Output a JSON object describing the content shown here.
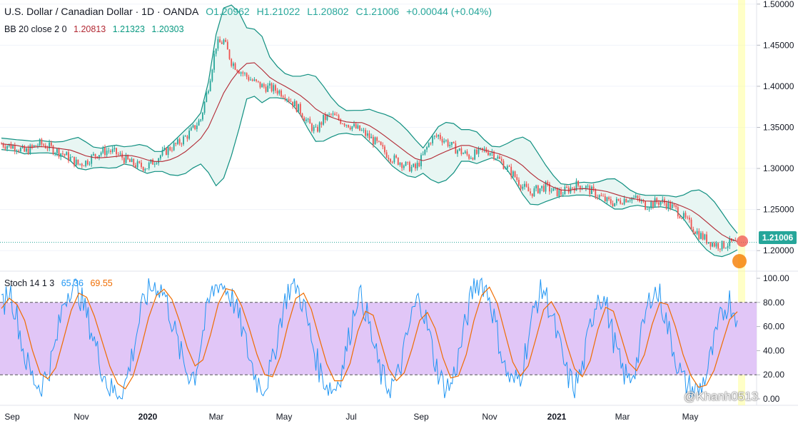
{
  "header": {
    "symbol": "U.S. Dollar / Canadian Dollar · 1D · OANDA",
    "open": "O1.20962",
    "high": "H1.21022",
    "low": "L1.20802",
    "close": "C1.21006",
    "change": "+0.00044 (+0.04%)"
  },
  "bb_legend": {
    "label": "BB 20 close 2 0",
    "basis": "1.20813",
    "upper": "1.21323",
    "lower": "1.20303"
  },
  "stoch_legend": {
    "label": "Stoch 14 1 3",
    "k": "65.36",
    "d": "69.55"
  },
  "last_price_badge": "1.21006",
  "watermark": "@Khanh0513",
  "colors": {
    "up": "#26a69a",
    "down": "#ef5350",
    "basis": "#b22833",
    "band": "#0f8f80",
    "band_fill": "#e8f6f3",
    "k": "#2196f3",
    "d": "#ef6c00",
    "stoch_fill": "#e1c6f7",
    "highlight": "#ffff99"
  },
  "chart_data": [
    {
      "type": "line",
      "title": "U.S. Dollar / Canadian Dollar · 1D · OANDA",
      "ylim": [
        1.175,
        1.505
      ],
      "y_ticks": [
        "1.50000",
        "1.45000",
        "1.40000",
        "1.35000",
        "1.30000",
        "1.25000",
        "1.20000"
      ],
      "x_ticks": [
        "Sep",
        "Nov",
        "2020",
        "Mar",
        "May",
        "Jul",
        "Sep",
        "Nov",
        "2021",
        "Mar",
        "May"
      ],
      "series": [
        {
          "name": "Price (approx. close)",
          "values": [
            1.33,
            1.328,
            1.326,
            1.32,
            1.325,
            1.33,
            1.327,
            1.322,
            1.318,
            1.312,
            1.305,
            1.308,
            1.315,
            1.32,
            1.322,
            1.318,
            1.312,
            1.306,
            1.303,
            1.302,
            1.31,
            1.318,
            1.325,
            1.33,
            1.338,
            1.348,
            1.36,
            1.4,
            1.45,
            1.455,
            1.43,
            1.42,
            1.412,
            1.405,
            1.4,
            1.398,
            1.395,
            1.39,
            1.38,
            1.37,
            1.355,
            1.345,
            1.36,
            1.365,
            1.36,
            1.355,
            1.35,
            1.345,
            1.338,
            1.33,
            1.32,
            1.312,
            1.308,
            1.302,
            1.3,
            1.315,
            1.335,
            1.34,
            1.333,
            1.325,
            1.32,
            1.315,
            1.318,
            1.322,
            1.32,
            1.31,
            1.3,
            1.29,
            1.278,
            1.27,
            1.275,
            1.278,
            1.272,
            1.27,
            1.275,
            1.28,
            1.278,
            1.272,
            1.266,
            1.26,
            1.258,
            1.262,
            1.265,
            1.262,
            1.255,
            1.258,
            1.26,
            1.256,
            1.25,
            1.24,
            1.23,
            1.22,
            1.213,
            1.208,
            1.206,
            1.209,
            1.21
          ]
        },
        {
          "name": "BB Basis",
          "values": []
        },
        {
          "name": "BB Upper",
          "values": []
        },
        {
          "name": "BB Lower",
          "values": []
        }
      ],
      "last_value": 1.21006
    },
    {
      "type": "line",
      "title": "Stoch 14 1 3",
      "ylim": [
        0,
        100
      ],
      "y_ticks": [
        "100.00",
        "80.00",
        "60.00",
        "40.00",
        "20.00",
        "0.00"
      ],
      "bands": {
        "upper": 80,
        "lower": 20
      },
      "series": [
        {
          "name": "%K",
          "values": [
            75,
            92,
            68,
            35,
            18,
            10,
            22,
            45,
            80,
            95,
            88,
            70,
            48,
            25,
            8,
            5,
            12,
            40,
            72,
            90,
            95,
            88,
            65,
            40,
            22,
            20,
            55,
            85,
            97,
            92,
            80,
            60,
            35,
            15,
            10,
            30,
            65,
            90,
            95,
            78,
            50,
            25,
            12,
            8,
            25,
            55,
            88,
            75,
            45,
            20,
            10,
            15,
            40,
            70,
            85,
            60,
            30,
            12,
            10,
            35,
            65,
            95,
            98,
            85,
            55,
            25,
            12,
            20,
            50,
            80,
            92,
            70,
            45,
            20,
            10,
            25,
            60,
            88,
            80,
            50,
            25,
            15,
            30,
            65,
            90,
            85,
            60,
            35,
            15,
            8,
            6,
            20,
            45,
            70,
            82,
            65
          ]
        },
        {
          "name": "%D",
          "values": []
        }
      ]
    }
  ]
}
